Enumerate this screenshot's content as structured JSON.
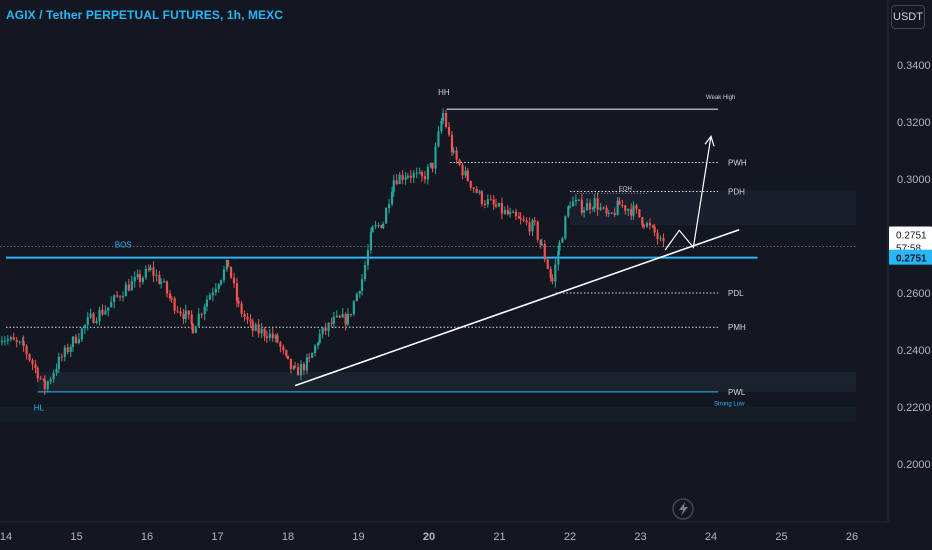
{
  "header": {
    "title": "AGIX / Tether PERPETUAL FUTURES, 1h, MEXC",
    "currency": "USDT"
  },
  "colors": {
    "background": "#131722",
    "up": "#26a69a",
    "down": "#ef5350",
    "accent": "#29b6f6",
    "white": "#ffffff"
  },
  "icons": {
    "replay": "lightning-icon"
  },
  "price_badge": {
    "price": "0.2751",
    "countdown": "57:58",
    "price2": "0.2751"
  },
  "chart_data": {
    "type": "candlestick",
    "title": "AGIX / Tether PERPETUAL FUTURES, 1h, MEXC",
    "x_labels": [
      "14",
      "15",
      "16",
      "17",
      "18",
      "19",
      "20",
      "21",
      "22",
      "23",
      "24",
      "25",
      "26"
    ],
    "x_label_days": [
      14,
      15,
      16,
      17,
      18,
      19,
      20,
      21,
      22,
      23,
      24,
      25,
      26
    ],
    "y_ticks": [
      "0.3400",
      "0.3200",
      "0.3000",
      "0.2800",
      "0.2600",
      "0.2400",
      "0.2200",
      "0.2000"
    ],
    "y_tick_values": [
      0.34,
      0.32,
      0.3,
      0.28,
      0.26,
      0.24,
      0.22,
      0.2
    ],
    "ylim": [
      0.1792,
      0.3608
    ],
    "xlim": [
      14.0,
      26.06
    ],
    "close_path": [
      [
        13.9,
        0.245
      ],
      [
        14.25,
        0.241
      ],
      [
        14.45,
        0.232
      ],
      [
        14.55,
        0.227
      ],
      [
        14.75,
        0.236
      ],
      [
        14.95,
        0.243
      ],
      [
        15.2,
        0.251
      ],
      [
        15.45,
        0.255
      ],
      [
        15.7,
        0.262
      ],
      [
        15.9,
        0.265
      ],
      [
        16.05,
        0.268
      ],
      [
        16.2,
        0.264
      ],
      [
        16.35,
        0.257
      ],
      [
        16.55,
        0.252
      ],
      [
        16.65,
        0.248
      ],
      [
        16.85,
        0.258
      ],
      [
        17.05,
        0.266
      ],
      [
        17.15,
        0.27
      ],
      [
        17.3,
        0.255
      ],
      [
        17.5,
        0.247
      ],
      [
        17.7,
        0.246
      ],
      [
        17.85,
        0.243
      ],
      [
        18.0,
        0.235
      ],
      [
        18.1,
        0.232
      ],
      [
        18.3,
        0.236
      ],
      [
        18.45,
        0.245
      ],
      [
        18.65,
        0.25
      ],
      [
        18.85,
        0.251
      ],
      [
        19.05,
        0.265
      ],
      [
        19.2,
        0.282
      ],
      [
        19.35,
        0.285
      ],
      [
        19.5,
        0.3
      ],
      [
        19.7,
        0.302
      ],
      [
        19.9,
        0.3
      ],
      [
        20.05,
        0.305
      ],
      [
        20.2,
        0.323
      ],
      [
        20.35,
        0.308
      ],
      [
        20.55,
        0.3
      ],
      [
        20.75,
        0.293
      ],
      [
        20.95,
        0.29
      ],
      [
        21.15,
        0.287
      ],
      [
        21.3,
        0.285
      ],
      [
        21.5,
        0.283
      ],
      [
        21.6,
        0.276
      ],
      [
        21.75,
        0.264
      ],
      [
        21.85,
        0.277
      ],
      [
        22.0,
        0.292
      ],
      [
        22.2,
        0.29
      ],
      [
        22.35,
        0.292
      ],
      [
        22.55,
        0.286
      ],
      [
        22.7,
        0.291
      ],
      [
        22.9,
        0.289
      ],
      [
        23.05,
        0.285
      ],
      [
        23.2,
        0.281
      ],
      [
        23.35,
        0.2751
      ]
    ],
    "levels": [
      {
        "label": "Weak High",
        "value": 0.3245,
        "x0": 20.25,
        "x1": 24.1,
        "style": "solid",
        "color": "#ffffff"
      },
      {
        "label": "PWH",
        "value": 0.3058,
        "x0": 20.3,
        "x1": 24.1,
        "style": "dotted",
        "color": "#ffffff"
      },
      {
        "label": "PDH",
        "value": 0.2956,
        "x0": 22.0,
        "x1": 24.1,
        "style": "dotted",
        "color": "#ffffff"
      },
      {
        "label": "PDL",
        "value": 0.26,
        "x0": 21.8,
        "x1": 24.1,
        "style": "dotted",
        "color": "#ffffff"
      },
      {
        "label": "PMH",
        "value": 0.248,
        "x0": 14.0,
        "x1": 24.1,
        "style": "dotted",
        "color": "#ffffff"
      },
      {
        "label": "PWL",
        "value": 0.2253,
        "x0": 14.45,
        "x1": 24.1,
        "style": "solid",
        "color": "#29b6f6"
      }
    ],
    "annotations": [
      {
        "text": "HH",
        "x": 20.2,
        "y": 0.3295
      },
      {
        "text": "HL",
        "x": 14.45,
        "y": 0.2188
      },
      {
        "text": "BOS",
        "x": 15.6,
        "y": 0.276
      },
      {
        "text": "EQH",
        "x": 22.75,
        "y": 0.296
      },
      {
        "text": "Strong Low",
        "x": 24.1,
        "y": 0.2205
      }
    ],
    "bos_line": {
      "value": 0.2724,
      "x0": 14.0,
      "x1": 24.66
    },
    "trendline": {
      "x0": 18.1,
      "y0": 0.2275,
      "x1": 24.4,
      "y1": 0.2822
    },
    "projection": [
      [
        23.35,
        0.2751
      ],
      [
        23.55,
        0.282
      ],
      [
        23.75,
        0.276
      ],
      [
        24.0,
        0.315
      ]
    ]
  }
}
